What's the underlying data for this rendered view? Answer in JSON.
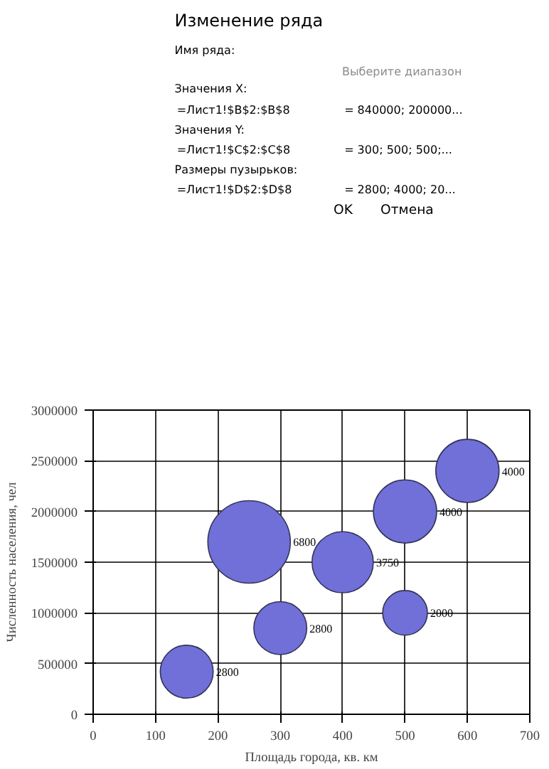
{
  "chart_data": [
    {
      "type": "other",
      "title": "Изменение ряда",
      "annotations": [
        "Имя ряда:",
        "Выберите диапазон",
        "Значения X:",
        "=Лист1!$B$2:$B$8",
        "= 840000; 200000...",
        "Значения Y:",
        "=Лист1!$C$2:$C$8",
        "= 300; 500; 500;...",
        "Размеры пузырьков:",
        "=Лист1!$D$2:$D$8",
        "= 2800; 4000; 20...",
        "OK",
        "Отмена"
      ]
    },
    {
      "type": "bubble",
      "xlabel": "Площадь города, кв. км",
      "ylabel": "Численность населения, чел",
      "x": [
        150,
        300,
        250,
        400,
        500,
        500,
        600
      ],
      "values": [
        420000,
        850000,
        1700000,
        1500000,
        1000000,
        2000000,
        2400000
      ],
      "sizes": [
        2800,
        2800,
        6800,
        3750,
        2000,
        4000,
        4000
      ],
      "value_labels": [
        "2800",
        "2800",
        "6800",
        "3750",
        "2000",
        "4000",
        "4000"
      ],
      "color": "#7070d8",
      "xlim": [
        0,
        700
      ],
      "xticks": [
        0,
        100,
        200,
        300,
        400,
        500,
        600,
        700
      ],
      "ylim": [
        0,
        3000000
      ],
      "yticks": [
        0,
        500000,
        1000000,
        1500000,
        2000000,
        2500000,
        3000000
      ],
      "grid": true,
      "marker": "circle"
    }
  ]
}
